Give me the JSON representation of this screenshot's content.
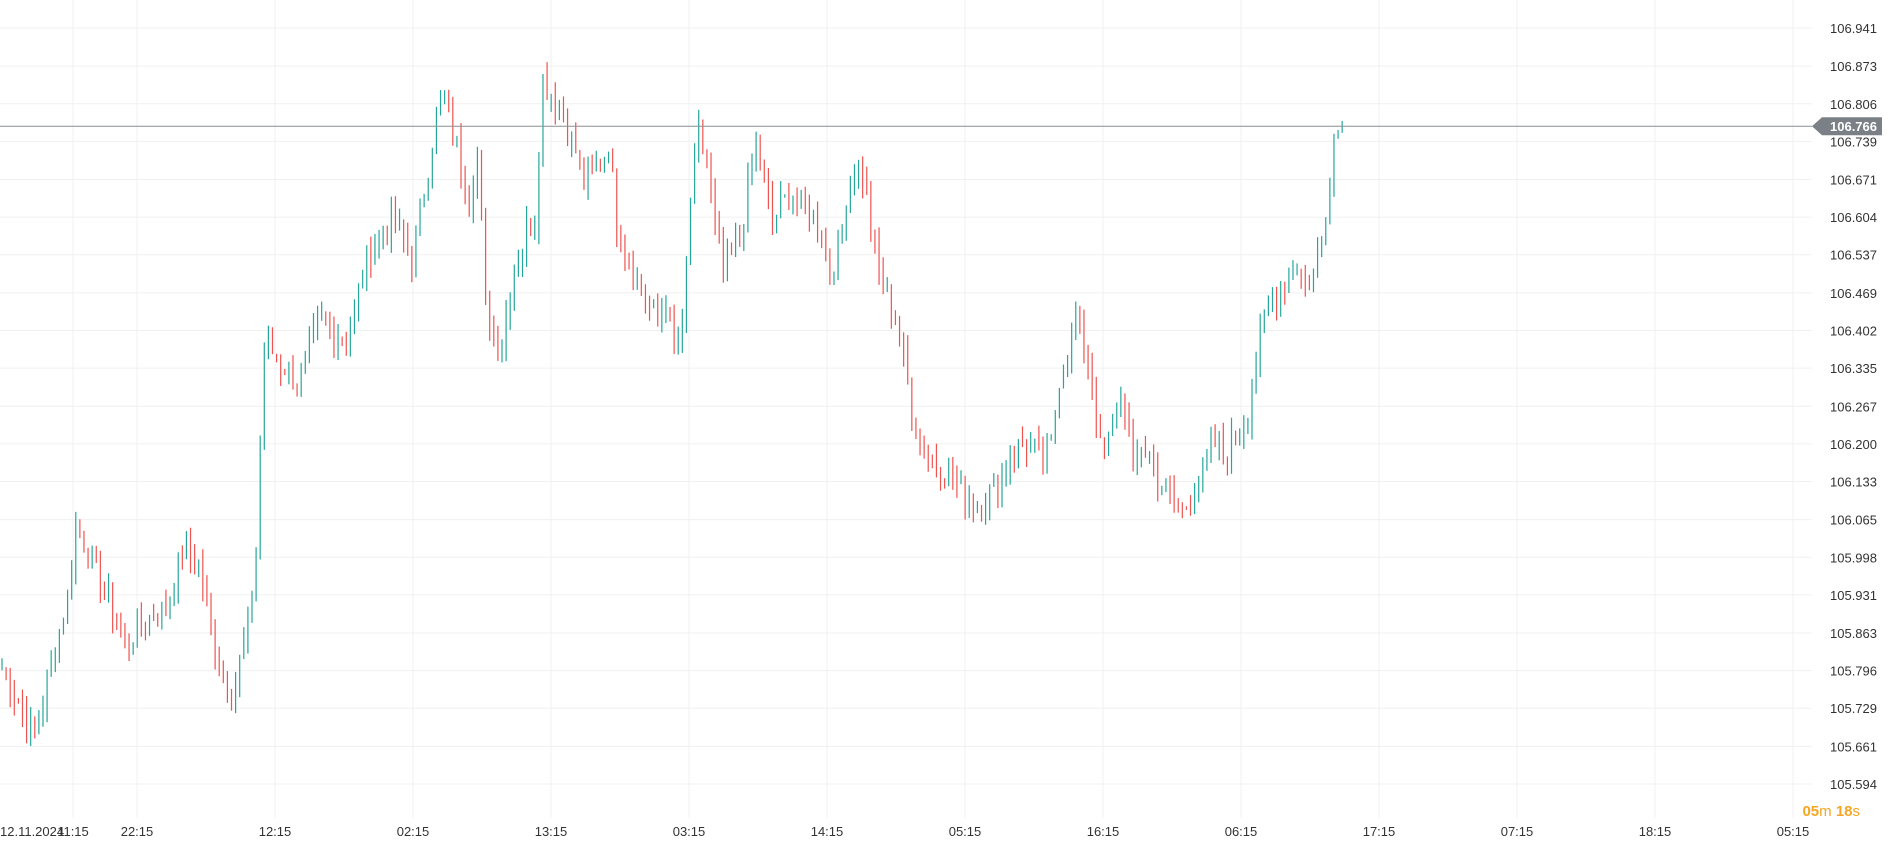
{
  "colors": {
    "up": "#26a69a",
    "down": "#ef5350",
    "grid": "#f0f0f0",
    "price_line": "#8a8f94",
    "price_label_bg": "#7b8086",
    "countdown": "#f5a623"
  },
  "countdown": {
    "minutes": "05",
    "minutes_unit": "m",
    "seconds": "18",
    "seconds_unit": "s"
  },
  "chart_data": {
    "type": "ohlc",
    "y_ticks": [
      "106.941",
      "106.873",
      "106.806",
      "106.739",
      "106.671",
      "106.604",
      "106.537",
      "106.469",
      "106.402",
      "106.335",
      "106.267",
      "106.200",
      "106.133",
      "106.065",
      "105.998",
      "105.931",
      "105.863",
      "105.796",
      "105.729",
      "105.661",
      "105.594"
    ],
    "ylim": [
      105.594,
      106.941
    ],
    "x_ticks": [
      "12.11.2024",
      "11:15",
      "22:15",
      "12:15",
      "02:15",
      "13:15",
      "03:15",
      "14:15",
      "05:15",
      "16:15",
      "06:15",
      "17:15",
      "07:15",
      "18:15",
      "05:15"
    ],
    "current_price": "106.766",
    "bar_count": 275,
    "anchors": [
      [
        0,
        105.8
      ],
      [
        8,
        105.68
      ],
      [
        14,
        105.87
      ],
      [
        16,
        105.93
      ],
      [
        18,
        106.06
      ],
      [
        24,
        105.96
      ],
      [
        30,
        105.84
      ],
      [
        34,
        105.88
      ],
      [
        40,
        105.91
      ],
      [
        44,
        106.01
      ],
      [
        48,
        105.98
      ],
      [
        52,
        105.84
      ],
      [
        56,
        105.75
      ],
      [
        60,
        105.88
      ],
      [
        62,
        106.0
      ],
      [
        64,
        106.38
      ],
      [
        72,
        106.31
      ],
      [
        78,
        106.42
      ],
      [
        84,
        106.38
      ],
      [
        90,
        106.55
      ],
      [
        96,
        106.6
      ],
      [
        100,
        106.52
      ],
      [
        106,
        106.78
      ],
      [
        108,
        106.82
      ],
      [
        112,
        106.7
      ],
      [
        114,
        106.63
      ],
      [
        116,
        106.72
      ],
      [
        118,
        106.45
      ],
      [
        120,
        106.4
      ],
      [
        122,
        106.38
      ],
      [
        124,
        106.48
      ],
      [
        128,
        106.58
      ],
      [
        130,
        106.6
      ],
      [
        132,
        106.85
      ],
      [
        136,
        106.8
      ],
      [
        140,
        106.72
      ],
      [
        142,
        106.67
      ],
      [
        146,
        106.7
      ],
      [
        148,
        106.73
      ],
      [
        150,
        106.6
      ],
      [
        152,
        106.55
      ],
      [
        154,
        106.5
      ],
      [
        156,
        106.47
      ],
      [
        160,
        106.42
      ],
      [
        162,
        106.46
      ],
      [
        164,
        106.38
      ],
      [
        166,
        106.4
      ],
      [
        168,
        106.64
      ],
      [
        170,
        106.75
      ],
      [
        172,
        106.7
      ],
      [
        174,
        106.58
      ],
      [
        176,
        106.5
      ],
      [
        180,
        106.57
      ],
      [
        184,
        106.73
      ],
      [
        188,
        106.6
      ],
      [
        192,
        106.64
      ],
      [
        196,
        106.62
      ],
      [
        200,
        106.58
      ],
      [
        202,
        106.5
      ],
      [
        204,
        106.54
      ],
      [
        206,
        106.64
      ],
      [
        208,
        106.7
      ],
      [
        210,
        106.68
      ],
      [
        214,
        106.5
      ],
      [
        218,
        106.43
      ],
      [
        222,
        106.26
      ],
      [
        224,
        106.2
      ],
      [
        230,
        106.15
      ],
      [
        234,
        106.12
      ],
      [
        238,
        106.09
      ],
      [
        242,
        106.12
      ],
      [
        246,
        106.18
      ],
      [
        250,
        106.2
      ],
      [
        254,
        106.18
      ],
      [
        256,
        106.2
      ],
      [
        258,
        106.32
      ],
      [
        260,
        106.35
      ],
      [
        262,
        106.42
      ],
      [
        264,
        106.38
      ],
      [
        266,
        106.3
      ],
      [
        268,
        106.19
      ],
      [
        270,
        106.2
      ],
      [
        272,
        106.28
      ],
      [
        274,
        106.27
      ],
      [
        276,
        106.15
      ],
      [
        278,
        106.2
      ],
      [
        280,
        106.18
      ],
      [
        282,
        106.13
      ],
      [
        284,
        106.11
      ],
      [
        286,
        106.1
      ],
      [
        288,
        106.08
      ],
      [
        290,
        106.1
      ],
      [
        292,
        106.14
      ],
      [
        294,
        106.17
      ],
      [
        296,
        106.2
      ],
      [
        298,
        106.18
      ],
      [
        300,
        106.2
      ],
      [
        304,
        106.25
      ],
      [
        306,
        106.35
      ],
      [
        308,
        106.42
      ],
      [
        312,
        106.48
      ],
      [
        316,
        106.52
      ],
      [
        318,
        106.48
      ],
      [
        320,
        106.5
      ],
      [
        322,
        106.57
      ],
      [
        324,
        106.67
      ],
      [
        325,
        106.75
      ],
      [
        327,
        106.766
      ]
    ]
  }
}
